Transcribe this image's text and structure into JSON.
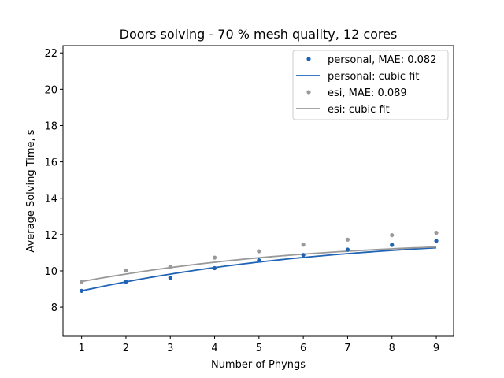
{
  "chart_data": {
    "type": "scatter",
    "title": "Doors solving - 70 % mesh quality, 12 cores",
    "xlabel": "Number of Phyngs",
    "ylabel": "Average Solving Time, s",
    "xlim": [
      0.58,
      9.39
    ],
    "ylim": [
      6.4,
      22.4
    ],
    "x_ticks": [
      1,
      2,
      3,
      4,
      5,
      6,
      7,
      8,
      9
    ],
    "y_ticks": [
      8,
      10,
      12,
      14,
      16,
      18,
      20,
      22
    ],
    "grid": false,
    "legend_position": "top-right",
    "x": [
      1,
      2,
      3,
      4,
      5,
      6,
      7,
      8,
      9
    ],
    "series": [
      {
        "name": "personal, MAE: 0.082",
        "kind": "points",
        "color": "#1f63b4",
        "values": [
          8.9,
          9.4,
          9.62,
          10.15,
          10.58,
          10.88,
          11.17,
          11.43,
          11.65
        ]
      },
      {
        "name": "personal: cubic fit",
        "kind": "line",
        "color": "#1f63b4",
        "coeffs": [
          8.322,
          0.6187,
          -0.0432,
          0.00121
        ]
      },
      {
        "name": "esi, MAE: 0.089",
        "kind": "points",
        "color": "#999999",
        "values": [
          9.38,
          10.02,
          10.23,
          10.73,
          11.08,
          11.44,
          11.72,
          11.97,
          12.1
        ]
      },
      {
        "name": "esi: cubic fit",
        "kind": "line",
        "color": "#999999",
        "coeffs": [
          8.925,
          0.5225,
          -0.0377,
          0.00102
        ]
      }
    ]
  }
}
